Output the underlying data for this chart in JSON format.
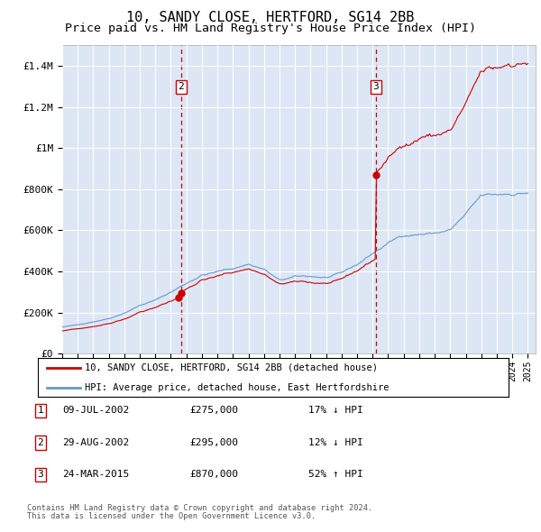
{
  "title": "10, SANDY CLOSE, HERTFORD, SG14 2BB",
  "subtitle": "Price paid vs. HM Land Registry's House Price Index (HPI)",
  "title_fontsize": 11,
  "subtitle_fontsize": 9.5,
  "background_color": "#dce6f5",
  "hpi_color": "#6699cc",
  "price_color": "#cc0000",
  "vline_color": "#cc0000",
  "ylim": [
    0,
    1500000
  ],
  "yticks": [
    0,
    200000,
    400000,
    600000,
    800000,
    1000000,
    1200000,
    1400000
  ],
  "ytick_labels": [
    "£0",
    "£200K",
    "£400K",
    "£600K",
    "£800K",
    "£1M",
    "£1.2M",
    "£1.4M"
  ],
  "legend_label_price": "10, SANDY CLOSE, HERTFORD, SG14 2BB (detached house)",
  "legend_label_hpi": "HPI: Average price, detached house, East Hertfordshire",
  "transactions": [
    {
      "label": "1",
      "date_str": "09-JUL-2002",
      "price": 275000,
      "relation": "17% ↓ HPI",
      "x": 2002.52
    },
    {
      "label": "2",
      "date_str": "29-AUG-2002",
      "price": 295000,
      "relation": "12% ↓ HPI",
      "x": 2002.66
    },
    {
      "label": "3",
      "date_str": "24-MAR-2015",
      "price": 870000,
      "relation": "52% ↑ HPI",
      "x": 2015.22
    }
  ],
  "footer_line1": "Contains HM Land Registry data © Crown copyright and database right 2024.",
  "footer_line2": "This data is licensed under the Open Government Licence v3.0."
}
